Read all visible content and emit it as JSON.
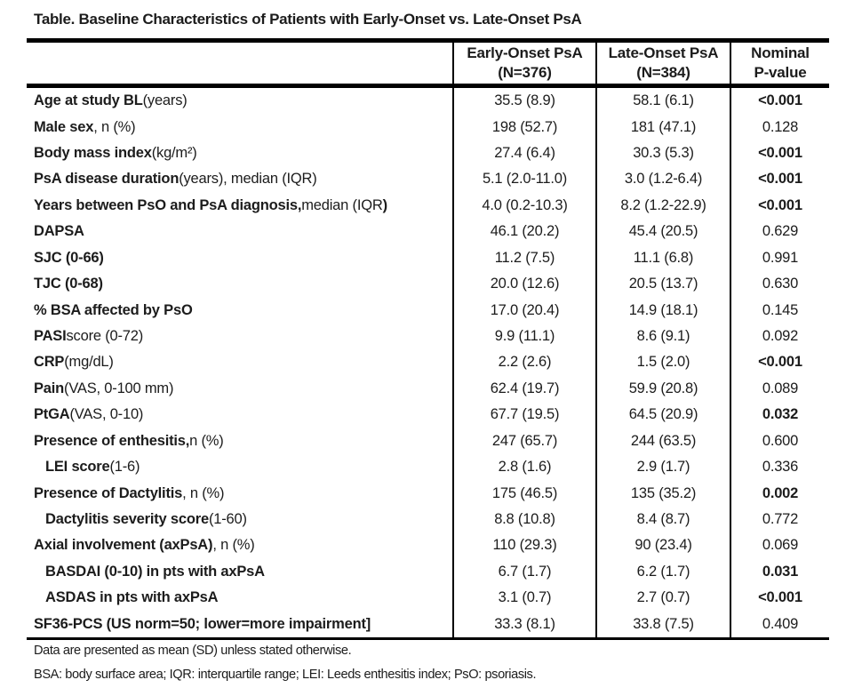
{
  "title": "Table. Baseline Characteristics of Patients with Early-Onset vs. Late-Onset PsA",
  "columns": {
    "early": [
      "Early-Onset PsA",
      "(N=376)"
    ],
    "late": [
      "Late-Onset PsA",
      "(N=384)"
    ],
    "pvalue": [
      "Nominal",
      "P-value"
    ]
  },
  "rows": [
    {
      "label": [
        {
          "t": "Age at study BL",
          "b": true
        },
        {
          "t": " (years)",
          "b": false
        }
      ],
      "indent": false,
      "early": "35.5 (8.9)",
      "late": "58.1 (6.1)",
      "p": "<0.001",
      "p_bold": true
    },
    {
      "label": [
        {
          "t": "Male sex",
          "b": true
        },
        {
          "t": ", n (%)",
          "b": false
        }
      ],
      "indent": false,
      "early": "198 (52.7)",
      "late": "181 (47.1)",
      "p": "0.128",
      "p_bold": false
    },
    {
      "label": [
        {
          "t": "Body mass index",
          "b": true
        },
        {
          "t": " (kg/m²)",
          "b": false
        }
      ],
      "indent": false,
      "early": "27.4 (6.4)",
      "late": "30.3 (5.3)",
      "p": "<0.001",
      "p_bold": true
    },
    {
      "label": [
        {
          "t": "PsA disease duration",
          "b": true
        },
        {
          "t": " (years), median (IQR)",
          "b": false
        }
      ],
      "indent": false,
      "early": "5.1 (2.0-11.0)",
      "late": "3.0 (1.2-6.4)",
      "p": "<0.001",
      "p_bold": true
    },
    {
      "label": [
        {
          "t": "Years between PsO and PsA diagnosis,",
          "b": true
        },
        {
          "t": " median (IQR",
          "b": false
        },
        {
          "t": ")",
          "b": true
        }
      ],
      "indent": false,
      "early": "4.0 (0.2-10.3)",
      "late": "8.2 (1.2-22.9)",
      "p": "<0.001",
      "p_bold": true
    },
    {
      "label": [
        {
          "t": "DAPSA",
          "b": true
        }
      ],
      "indent": false,
      "early": "46.1 (20.2)",
      "late": "45.4 (20.5)",
      "p": "0.629",
      "p_bold": false
    },
    {
      "label": [
        {
          "t": "SJC (0-66)",
          "b": true
        }
      ],
      "indent": false,
      "early": "11.2 (7.5)",
      "late": "11.1 (6.8)",
      "p": "0.991",
      "p_bold": false
    },
    {
      "label": [
        {
          "t": "TJC (0-68)",
          "b": true
        }
      ],
      "indent": false,
      "early": "20.0 (12.6)",
      "late": "20.5 (13.7)",
      "p": "0.630",
      "p_bold": false
    },
    {
      "label": [
        {
          "t": "% BSA affected by PsO",
          "b": true
        }
      ],
      "indent": false,
      "early": "17.0 (20.4)",
      "late": "14.9 (18.1)",
      "p": "0.145",
      "p_bold": false
    },
    {
      "label": [
        {
          "t": "PASI",
          "b": true
        },
        {
          "t": " score (0-72)",
          "b": false
        }
      ],
      "indent": false,
      "early": "9.9 (11.1)",
      "late": "8.6 (9.1)",
      "p": "0.092",
      "p_bold": false
    },
    {
      "label": [
        {
          "t": "CRP",
          "b": true
        },
        {
          "t": " (mg/dL)",
          "b": false
        }
      ],
      "indent": false,
      "early": "2.2 (2.6)",
      "late": "1.5 (2.0)",
      "p": "<0.001",
      "p_bold": true
    },
    {
      "label": [
        {
          "t": "Pain",
          "b": true
        },
        {
          "t": " (VAS, 0-100 mm)",
          "b": false
        }
      ],
      "indent": false,
      "early": "62.4 (19.7)",
      "late": "59.9 (20.8)",
      "p": "0.089",
      "p_bold": false
    },
    {
      "label": [
        {
          "t": "PtGA",
          "b": true
        },
        {
          "t": " (VAS, 0-10)",
          "b": false
        }
      ],
      "indent": false,
      "early": "67.7 (19.5)",
      "late": "64.5 (20.9)",
      "p": "0.032",
      "p_bold": true
    },
    {
      "label": [
        {
          "t": "Presence of enthesitis,",
          "b": true
        },
        {
          "t": " n (%)",
          "b": false
        }
      ],
      "indent": false,
      "early": "247 (65.7)",
      "late": "244 (63.5)",
      "p": "0.600",
      "p_bold": false
    },
    {
      "label": [
        {
          "t": "LEI score",
          "b": true
        },
        {
          "t": " (1-6)",
          "b": false
        }
      ],
      "indent": true,
      "early": "2.8 (1.6)",
      "late": "2.9 (1.7)",
      "p": "0.336",
      "p_bold": false
    },
    {
      "label": [
        {
          "t": "Presence of Dactylitis",
          "b": true
        },
        {
          "t": ", n (%)",
          "b": false
        }
      ],
      "indent": false,
      "early": "175 (46.5)",
      "late": "135 (35.2)",
      "p": "0.002",
      "p_bold": true
    },
    {
      "label": [
        {
          "t": "Dactylitis severity score",
          "b": true
        },
        {
          "t": " (1-60)",
          "b": false
        }
      ],
      "indent": true,
      "early": "8.8 (10.8)",
      "late": "8.4 (8.7)",
      "p": "0.772",
      "p_bold": false
    },
    {
      "label": [
        {
          "t": "Axial involvement (axPsA)",
          "b": true
        },
        {
          "t": ", n (%)",
          "b": false
        }
      ],
      "indent": false,
      "early": "110 (29.3)",
      "late": "90 (23.4)",
      "p": "0.069",
      "p_bold": false
    },
    {
      "label": [
        {
          "t": "BASDAI (0-10) in pts with axPsA",
          "b": true
        }
      ],
      "indent": true,
      "early": "6.7 (1.7)",
      "late": "6.2 (1.7)",
      "p": "0.031",
      "p_bold": true
    },
    {
      "label": [
        {
          "t": "ASDAS in pts with axPsA",
          "b": true
        }
      ],
      "indent": true,
      "early": "3.1 (0.7)",
      "late": "2.7 (0.7)",
      "p": "<0.001",
      "p_bold": true
    },
    {
      "label": [
        {
          "t": "SF36-PCS (US norm=50; lower=more impairment]",
          "b": true
        }
      ],
      "indent": false,
      "early": "33.3 (8.1)",
      "late": "33.8 (7.5)",
      "p": "0.409",
      "p_bold": false
    }
  ],
  "footnotes": [
    "Data are presented as mean (SD) unless stated otherwise.",
    "BSA: body surface area; IQR: interquartile range; LEI: Leeds enthesitis index; PsO: psoriasis."
  ]
}
